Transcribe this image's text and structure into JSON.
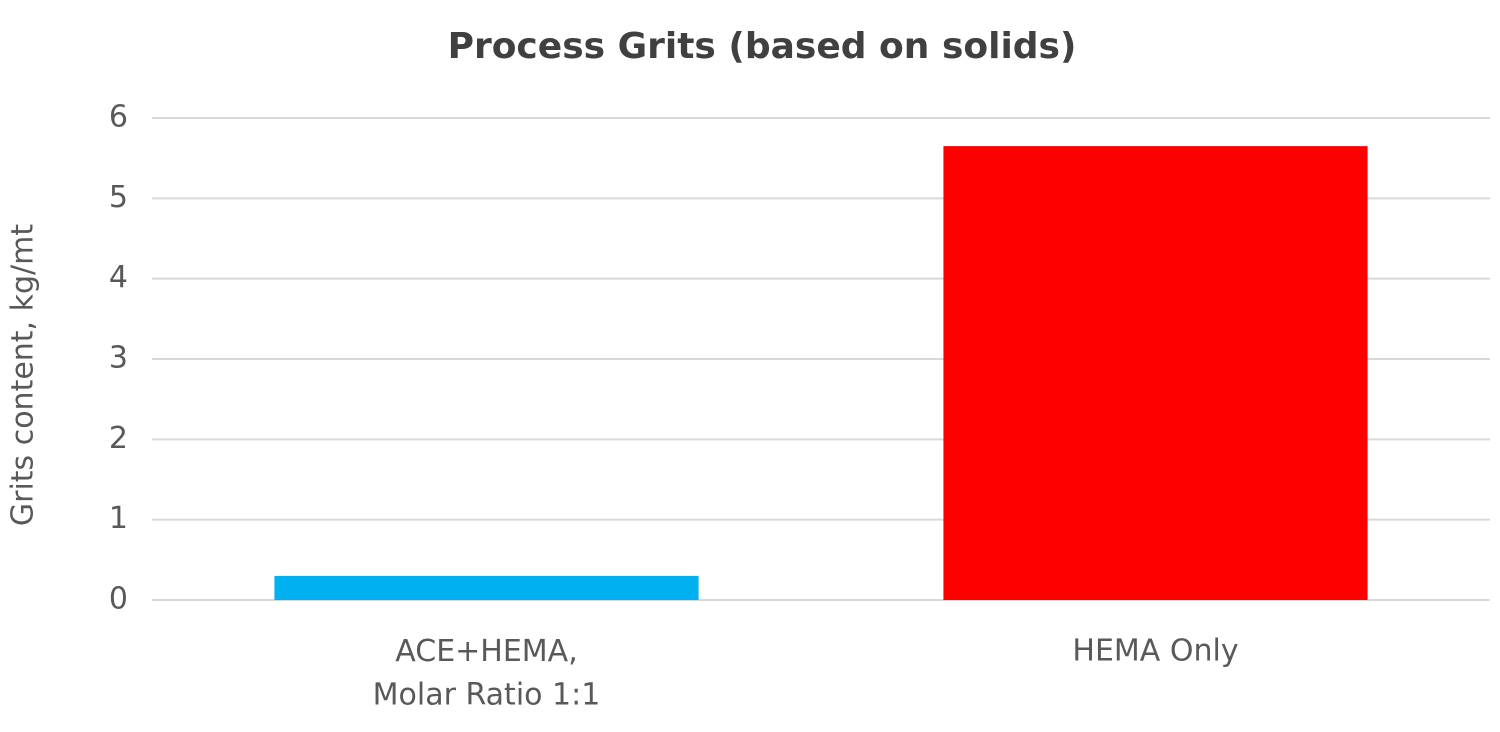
{
  "chart_data": {
    "type": "bar",
    "title": "Process Grits (based on solids)",
    "y_label": "Grits content, kg/mt",
    "categories": [
      "ACE+HEMA,\nMolar Ratio 1:1",
      "HEMA Only"
    ],
    "values": [
      0.3,
      5.65
    ],
    "colors": [
      "#00b0f0",
      "#ff0000"
    ],
    "ylim": [
      0,
      6
    ],
    "yticks": [
      0,
      1,
      2,
      3,
      4,
      5,
      6
    ],
    "grid": true
  }
}
